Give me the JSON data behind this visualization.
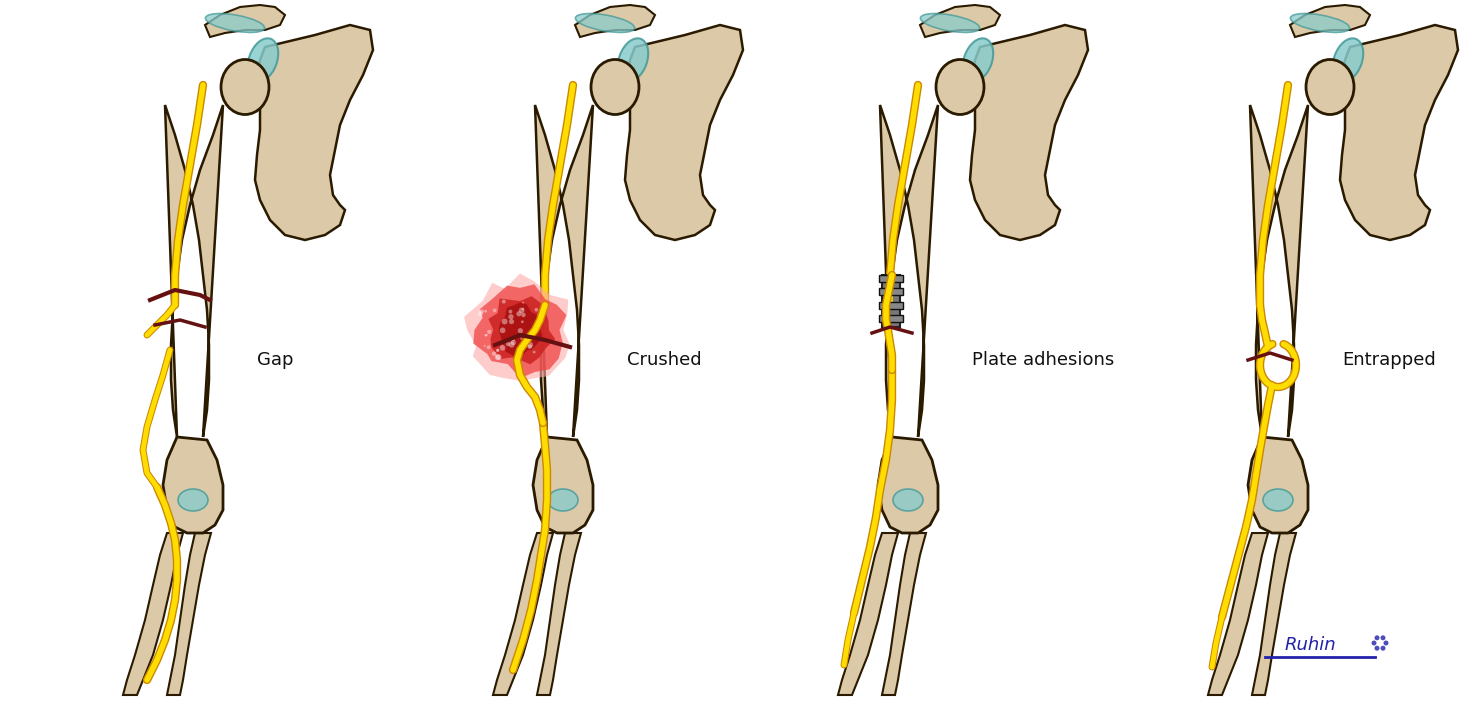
{
  "background_color": "#ffffff",
  "labels": [
    "Gap",
    "Crushed",
    "Plate adhesions",
    "Entrapped"
  ],
  "label_fontsize": 13,
  "bone_color": "#dcc9a8",
  "bone_highlight": "#ede0c8",
  "bone_shadow": "#b89870",
  "bone_edge_color": "#2a1a00",
  "nerve_color": "#ffdd00",
  "nerve_edge_color": "#cc8800",
  "crush_color_bright": "#ff4444",
  "crush_color_mid": "#dd2222",
  "crush_color_dark": "#aa1111",
  "plate_color": "#888888",
  "plate_edge": "#333333",
  "vessel_color": "#661111",
  "cartilage_color": "#88cccc",
  "cartilage_edge": "#449999",
  "signature_color": "#2222aa",
  "fig_width": 14.8,
  "fig_height": 7.25,
  "dpi": 100
}
